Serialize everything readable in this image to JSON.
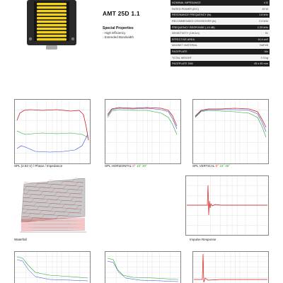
{
  "product": {
    "model": "AMT 25D 1.1",
    "special_heading": "Special Properties",
    "special_properties": [
      "- High Efficiency",
      "- Extended Bandwidth"
    ]
  },
  "spec_table": [
    {
      "label": "NOMINAL IMPEDANCE",
      "value": "4 Ω"
    },
    {
      "label": "RATED POWER (IEC)",
      "value": "15 W"
    },
    {
      "label": "RESONANCE FREQUENCY (fs)",
      "value": "1.6 kHz"
    },
    {
      "label": "RECOMMENDED CROSSOVER (fc)",
      "value": "2.5 kHz"
    },
    {
      "label": "FREQUENCY RESPONSE (-10 dB)",
      "value": "2-25 kHz"
    },
    {
      "label": "SENSITIVITY (1W/1m)",
      "value": "91"
    },
    {
      "label": "EFFECTIVE AREA",
      "value": "14.4 cm²"
    },
    {
      "label": "MAGNET MATERIAL",
      "value": "NdFeB"
    },
    {
      "label": "FACEPLATE",
      "value": "Alu"
    },
    {
      "label": "TOTAL WEIGHT",
      "value": "0.3 kg"
    },
    {
      "label": "FACEPLATE DIM",
      "value": "45 x 80 mm"
    }
  ],
  "captions": {
    "spl_impedance": "SPL (2.83 V) / Phase / Impedance",
    "spl_horizontal": {
      "text": "SPL HORIZONTAL",
      "vals": [
        "0°",
        "15°",
        "30°"
      ]
    },
    "spl_vertical": {
      "text": "SPL VERTICAL",
      "vals": [
        "0°",
        "15°",
        "30°"
      ]
    },
    "waterfall": "Waterfall",
    "impulse": "Impulse Response"
  },
  "colors": {
    "diaphragm_yellow": "#f2d21a",
    "housing": "#2a2a2a",
    "curve_red": "#d21f1f",
    "curve_blue": "#2b4bd6",
    "curve_green": "#1fa51f"
  }
}
